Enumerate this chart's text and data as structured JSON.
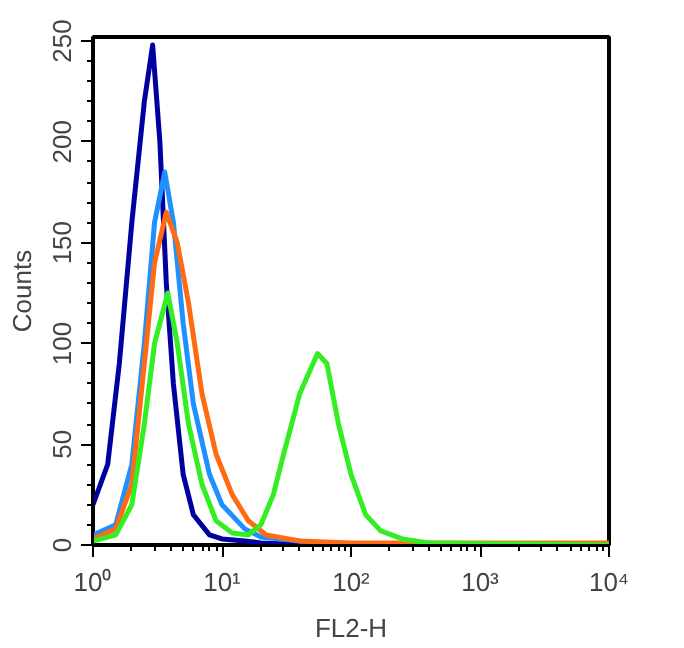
{
  "chart_data": {
    "type": "line",
    "xlabel": "FL2-H",
    "ylabel": "Counts",
    "log": "x",
    "xlim": [
      1,
      10000
    ],
    "ylim": [
      0,
      252
    ],
    "xticks": [
      {
        "value": 1,
        "label": "10⁰"
      },
      {
        "value": 10,
        "label": "10¹"
      },
      {
        "value": 100,
        "label": "10²"
      },
      {
        "value": 1000,
        "label": "10³"
      },
      {
        "value": 10000,
        "label": "10⁴"
      }
    ],
    "yticks": [
      0,
      50,
      100,
      150,
      200,
      250
    ],
    "grid": false,
    "marker": "none",
    "line_style": "solid",
    "series": [
      {
        "color": "#0000a0",
        "x": [
          1,
          1.3,
          1.6,
          2,
          2.5,
          2.9,
          3.3,
          3.7,
          4.2,
          5,
          6,
          8,
          10,
          15,
          20,
          50,
          10000
        ],
        "values": [
          20,
          40,
          90,
          160,
          220,
          248,
          200,
          130,
          80,
          35,
          15,
          5,
          3,
          2,
          1,
          0,
          0
        ]
      },
      {
        "color": "#1e90ff",
        "x": [
          1,
          1.5,
          2,
          2.5,
          3,
          3.6,
          4.2,
          5,
          6,
          8,
          10,
          15,
          20,
          40,
          100,
          10000
        ],
        "values": [
          5,
          10,
          40,
          100,
          160,
          185,
          160,
          110,
          70,
          35,
          20,
          8,
          4,
          2,
          0,
          0
        ]
      },
      {
        "color": "#ff6a13",
        "x": [
          1,
          1.5,
          2,
          2.5,
          3,
          3.7,
          4.5,
          5.5,
          7,
          9,
          12,
          16,
          22,
          40,
          100,
          10000
        ],
        "values": [
          3,
          8,
          30,
          90,
          140,
          165,
          150,
          120,
          75,
          45,
          25,
          12,
          5,
          2,
          1,
          1
        ]
      },
      {
        "color": "#33ee22",
        "x": [
          1,
          1.5,
          2,
          2.5,
          3,
          3.8,
          4.5,
          5.5,
          7,
          9,
          12,
          16,
          20,
          25,
          30,
          40,
          55,
          65,
          80,
          100,
          130,
          170,
          250,
          400,
          10000
        ],
        "values": [
          2,
          5,
          20,
          60,
          100,
          125,
          100,
          60,
          30,
          12,
          6,
          5,
          10,
          25,
          45,
          75,
          95,
          90,
          60,
          35,
          15,
          7,
          3,
          1,
          0
        ]
      }
    ]
  }
}
